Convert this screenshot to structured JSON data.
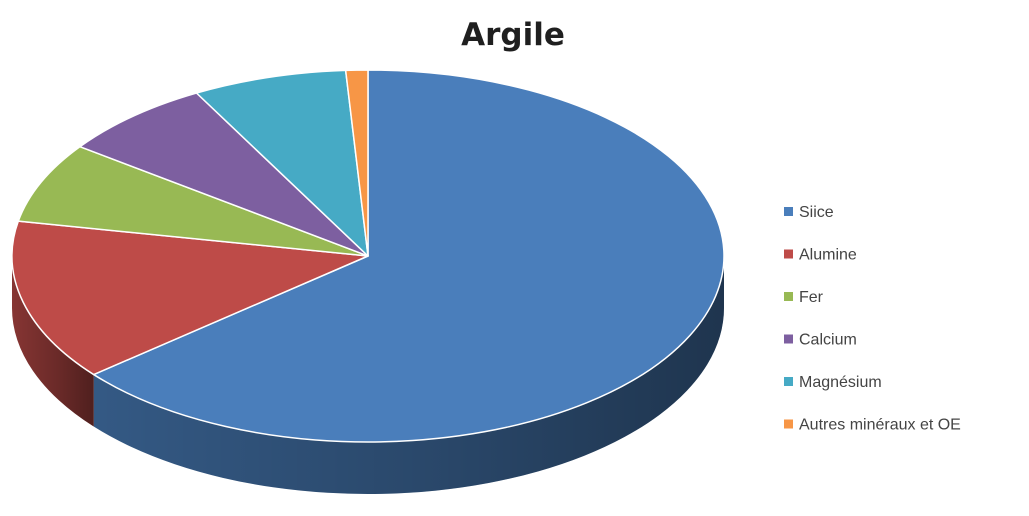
{
  "chart_data": {
    "type": "pie",
    "title": "Argile",
    "categories": [
      "Siice",
      "Alumine",
      "Fer",
      "Calcium",
      "Magnésium",
      "Autres minéraux et OE"
    ],
    "values": [
      64,
      14,
      7,
      7,
      7,
      1
    ],
    "unit": "%",
    "colors": [
      "#4a7ebb",
      "#be4b48",
      "#98b954",
      "#7d5fa0",
      "#46aac5",
      "#f79646"
    ],
    "legend_position": "right",
    "style": "3d"
  }
}
